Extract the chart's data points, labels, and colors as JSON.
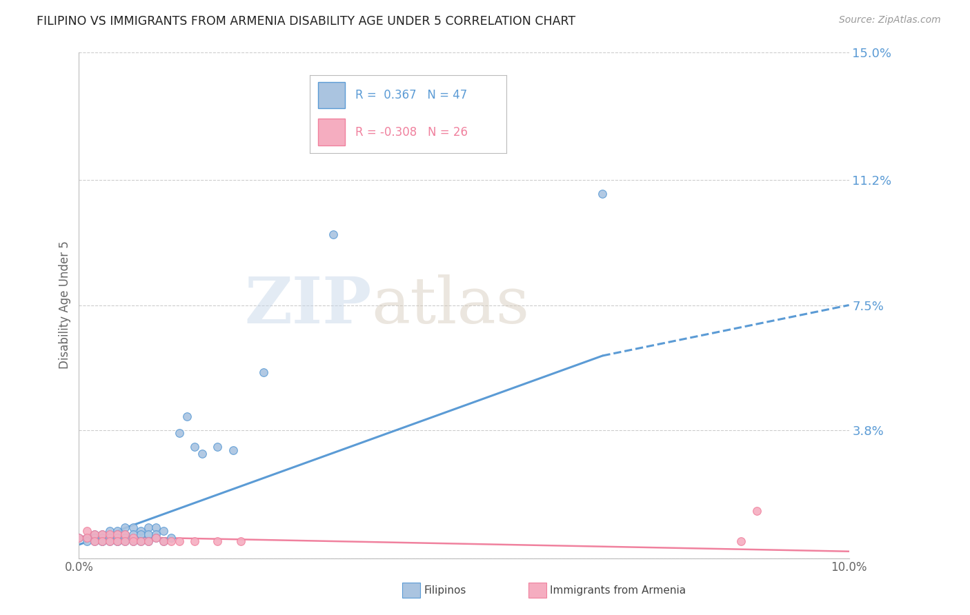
{
  "title": "FILIPINO VS IMMIGRANTS FROM ARMENIA DISABILITY AGE UNDER 5 CORRELATION CHART",
  "source": "Source: ZipAtlas.com",
  "ylabel": "Disability Age Under 5",
  "xlim": [
    0.0,
    0.1
  ],
  "ylim": [
    0.0,
    0.15
  ],
  "yticks": [
    0.0,
    0.038,
    0.075,
    0.112,
    0.15
  ],
  "ytick_labels": [
    "",
    "3.8%",
    "7.5%",
    "11.2%",
    "15.0%"
  ],
  "xtick_labels": [
    "0.0%",
    "10.0%"
  ],
  "watermark_zip": "ZIP",
  "watermark_atlas": "atlas",
  "legend_filipinos_R": "0.367",
  "legend_filipinos_N": "47",
  "legend_armenia_R": "-0.308",
  "legend_armenia_N": "26",
  "filipinos_color": "#aac4e0",
  "armenia_color": "#f5adc0",
  "trendline_filipinos_color": "#5b9bd5",
  "trendline_armenia_color": "#f0819e",
  "filipinos_x": [
    0.0,
    0.001,
    0.001,
    0.002,
    0.002,
    0.002,
    0.003,
    0.003,
    0.003,
    0.003,
    0.004,
    0.004,
    0.004,
    0.005,
    0.005,
    0.005,
    0.005,
    0.005,
    0.005,
    0.006,
    0.006,
    0.006,
    0.006,
    0.007,
    0.007,
    0.007,
    0.008,
    0.008,
    0.008,
    0.009,
    0.009,
    0.009,
    0.01,
    0.01,
    0.01,
    0.011,
    0.011,
    0.012,
    0.013,
    0.014,
    0.015,
    0.016,
    0.018,
    0.02,
    0.024,
    0.033,
    0.068
  ],
  "filipinos_y": [
    0.006,
    0.006,
    0.005,
    0.007,
    0.006,
    0.005,
    0.007,
    0.006,
    0.005,
    0.005,
    0.008,
    0.006,
    0.005,
    0.008,
    0.007,
    0.006,
    0.006,
    0.005,
    0.005,
    0.009,
    0.007,
    0.006,
    0.005,
    0.009,
    0.007,
    0.005,
    0.008,
    0.007,
    0.005,
    0.009,
    0.007,
    0.005,
    0.009,
    0.007,
    0.006,
    0.008,
    0.005,
    0.006,
    0.037,
    0.042,
    0.033,
    0.031,
    0.033,
    0.032,
    0.055,
    0.096,
    0.108
  ],
  "armenia_x": [
    0.0,
    0.001,
    0.001,
    0.002,
    0.002,
    0.003,
    0.003,
    0.004,
    0.004,
    0.005,
    0.005,
    0.006,
    0.006,
    0.007,
    0.007,
    0.008,
    0.009,
    0.01,
    0.011,
    0.012,
    0.013,
    0.015,
    0.018,
    0.021,
    0.086,
    0.088
  ],
  "armenia_y": [
    0.006,
    0.008,
    0.006,
    0.007,
    0.005,
    0.007,
    0.005,
    0.007,
    0.005,
    0.007,
    0.005,
    0.007,
    0.005,
    0.006,
    0.005,
    0.005,
    0.005,
    0.006,
    0.005,
    0.005,
    0.005,
    0.005,
    0.005,
    0.005,
    0.005,
    0.014
  ],
  "trendline_f_x0": 0.0,
  "trendline_f_y0": 0.004,
  "trendline_f_x1": 0.068,
  "trendline_f_y1": 0.06,
  "trendline_f_dash_x1": 0.1,
  "trendline_f_dash_y1": 0.075,
  "trendline_a_x0": 0.0,
  "trendline_a_y0": 0.0065,
  "trendline_a_x1": 0.1,
  "trendline_a_y1": 0.002
}
